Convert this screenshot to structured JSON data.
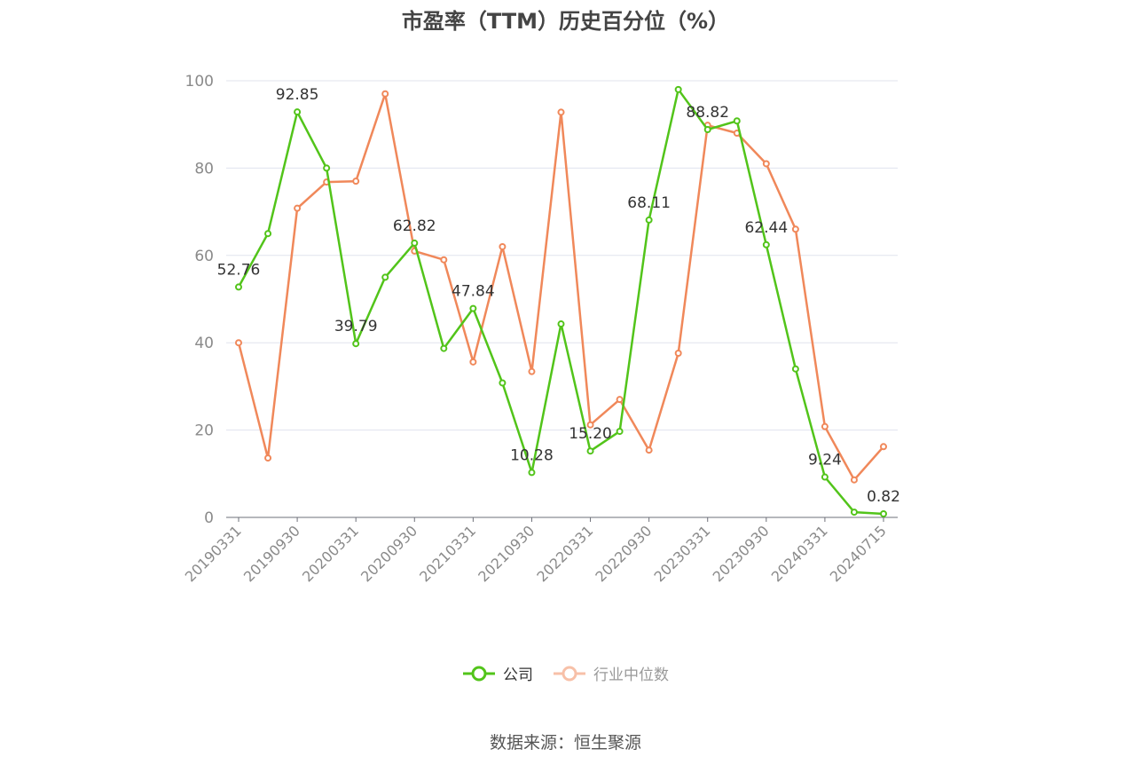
{
  "title": "市盈率（TTM）历史百分位（%）",
  "source": "数据来源：恒生聚源",
  "chart_data": {
    "type": "line",
    "title": "市盈率（TTM）历史百分位（%）",
    "xlabel": "",
    "ylabel": "",
    "ylim": [
      0,
      100
    ],
    "yticks": [
      0,
      20,
      40,
      60,
      80,
      100
    ],
    "grid": true,
    "legend_position": "bottom",
    "x": [
      "20190331",
      "20190630",
      "20190930",
      "20191231",
      "20200331",
      "20200630",
      "20200930",
      "20201231",
      "20210331",
      "20210630",
      "20210930",
      "20211231",
      "20220331",
      "20220630",
      "20220930",
      "20221231",
      "20230331",
      "20230630",
      "20230930",
      "20231231",
      "20240331",
      "20240630",
      "20240715"
    ],
    "xtick_labels": [
      "20190331",
      "20190930",
      "20200331",
      "20200930",
      "20210331",
      "20210930",
      "20220331",
      "20220930",
      "20230331",
      "20230930",
      "20240331",
      "20240715"
    ],
    "series": [
      {
        "name": "公司",
        "color": "#52c41a",
        "values": [
          52.76,
          65,
          92.85,
          80,
          39.79,
          55,
          62.82,
          38.7,
          47.84,
          30.8,
          10.28,
          44.3,
          15.2,
          19.7,
          68.11,
          98,
          88.82,
          90.8,
          62.44,
          34,
          9.24,
          1.2,
          0.82
        ],
        "labels": {
          "0": "52.76",
          "2": "92.85",
          "4": "39.79",
          "6": "62.82",
          "8": "47.84",
          "10": "10.28",
          "12": "15.20",
          "14": "68.11",
          "16": "88.82",
          "18": "62.44",
          "20": "9.24",
          "22": "0.82"
        }
      },
      {
        "name": "行业中位数",
        "color": "#f0885a",
        "values": [
          40,
          13.6,
          70.8,
          76.8,
          77,
          97,
          61,
          59,
          35.6,
          62,
          33.4,
          92.8,
          21.2,
          27,
          15.4,
          37.6,
          89.8,
          88,
          81,
          66,
          20.8,
          8.6,
          16.2
        ]
      }
    ]
  }
}
